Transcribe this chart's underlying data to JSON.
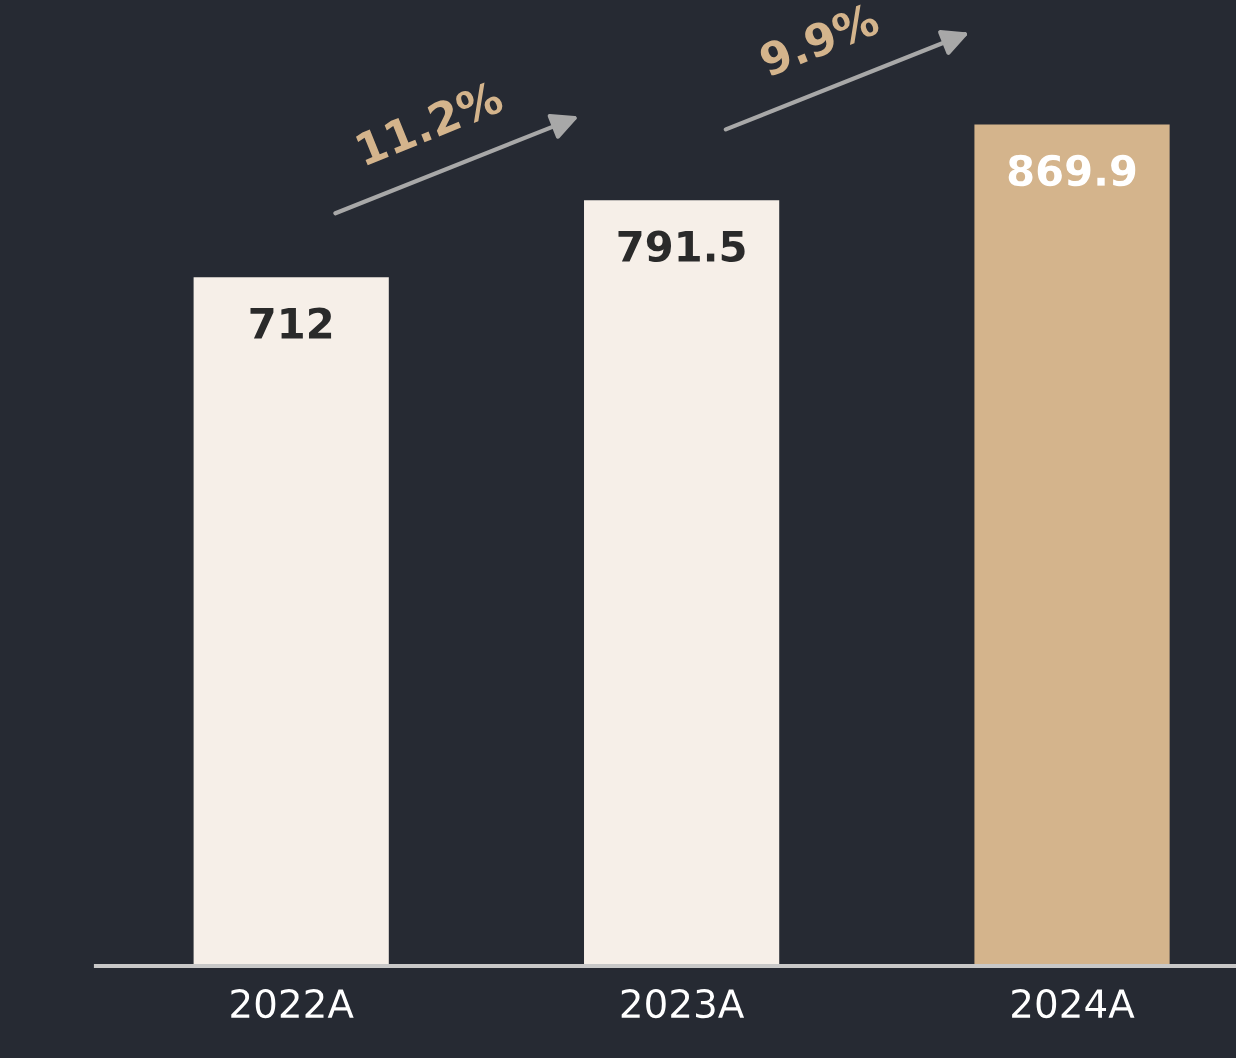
{
  "chart_data": {
    "type": "bar",
    "categories": [
      "2022A",
      "2023A",
      "2024A"
    ],
    "values": [
      712,
      791.5,
      869.9
    ],
    "colors": [
      "#f6efe8",
      "#f6efe8",
      "#d4b48c"
    ],
    "data_labels": true,
    "annotations": [
      "11.2%",
      "9.9%"
    ]
  }
}
